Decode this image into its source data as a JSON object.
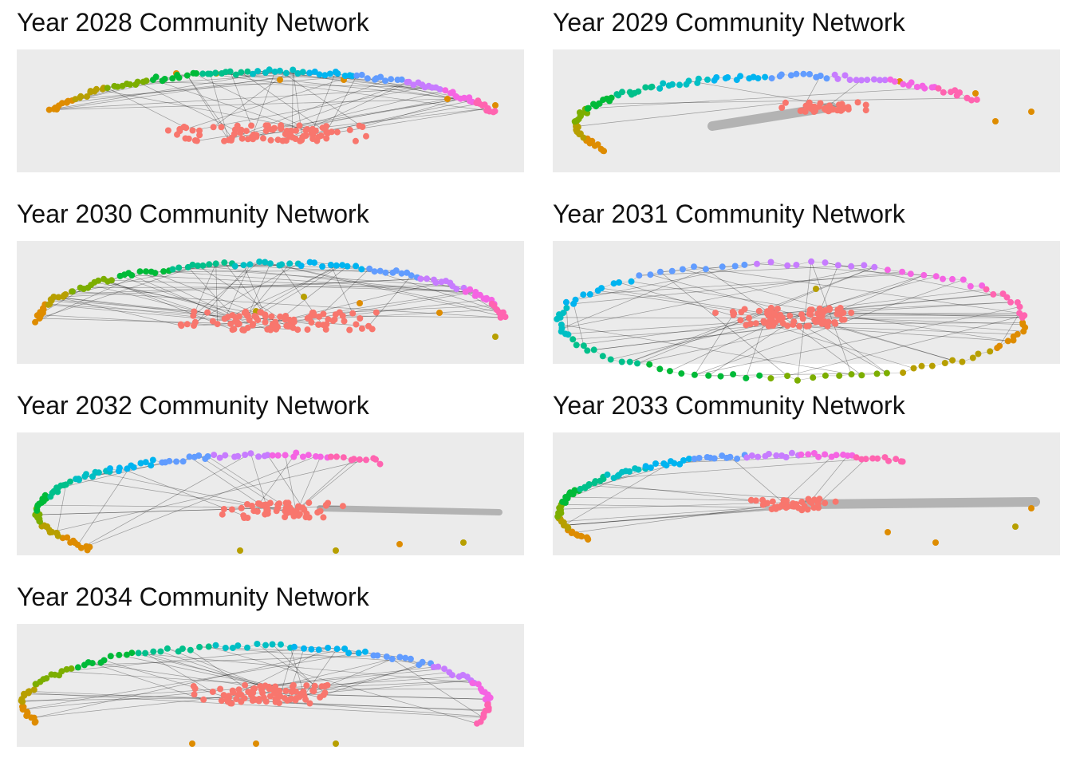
{
  "panels": [
    {
      "id": "2028",
      "title": "Year 2028 Community Network"
    },
    {
      "id": "2029",
      "title": "Year 2029 Community Network"
    },
    {
      "id": "2030",
      "title": "Year 2030 Community Network"
    },
    {
      "id": "2031",
      "title": "Year 2031 Community Network"
    },
    {
      "id": "2032",
      "title": "Year 2032 Community Network"
    },
    {
      "id": "2033",
      "title": "Year 2033 Community Network"
    },
    {
      "id": "2034",
      "title": "Year 2034 Community Network"
    }
  ],
  "community_colors": [
    "#f8766d",
    "#de8c00",
    "#b79f00",
    "#7cae00",
    "#00ba38",
    "#00c08b",
    "#00bfc4",
    "#00b4f0",
    "#619cff",
    "#c77cff",
    "#f564e3",
    "#ff64b0"
  ],
  "edge_color": "#000000",
  "bundle_color": "#b3b3b3"
}
